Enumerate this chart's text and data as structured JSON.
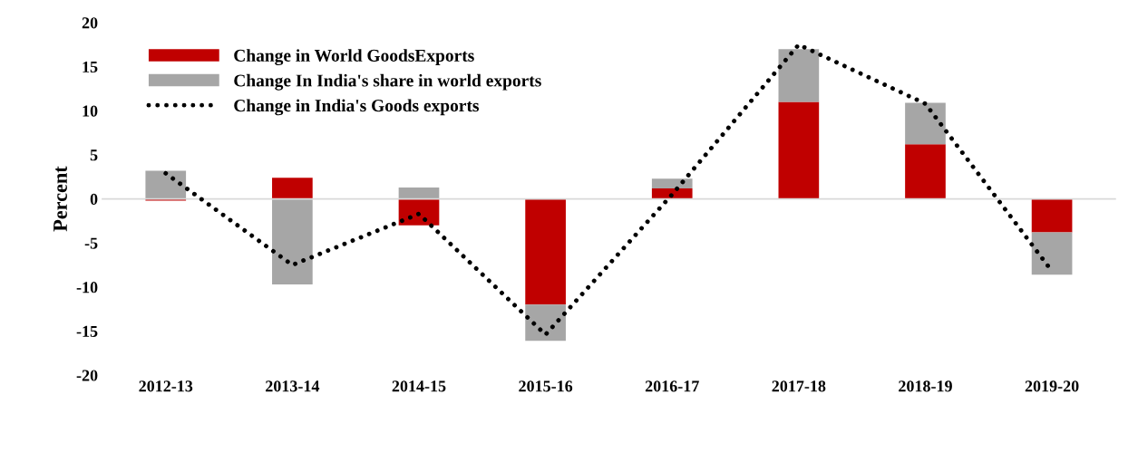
{
  "chart_data": {
    "type": "bar",
    "stacked": true,
    "ylabel": "Percent",
    "categories": [
      "2012-13",
      "2013-14",
      "2014-15",
      "2015-16",
      "2016-17",
      "2017-18",
      "2018-19",
      "2019-20"
    ],
    "series": [
      {
        "name": "Change in World GoodsExports",
        "color": "#c00000",
        "values": [
          -0.2,
          2.4,
          -3.0,
          -12.0,
          1.2,
          11.0,
          6.2,
          -3.8
        ]
      },
      {
        "name": "Change In India's share in world exports",
        "color": "#a6a6a6",
        "values": [
          3.2,
          -9.7,
          1.3,
          -4.1,
          1.1,
          6.0,
          4.7,
          -4.8
        ]
      },
      {
        "name": "Change in India's Goods exports",
        "type": "line",
        "color": "#000000",
        "line_style": "dotted",
        "values": [
          2.9,
          -7.5,
          -1.7,
          -15.4,
          0.5,
          17.5,
          10.8,
          -8.2
        ]
      }
    ],
    "ylim": [
      -20,
      20
    ],
    "yticks": [
      -20,
      -15,
      -10,
      -5,
      0,
      5,
      10,
      15,
      20
    ],
    "legend": "top left"
  }
}
